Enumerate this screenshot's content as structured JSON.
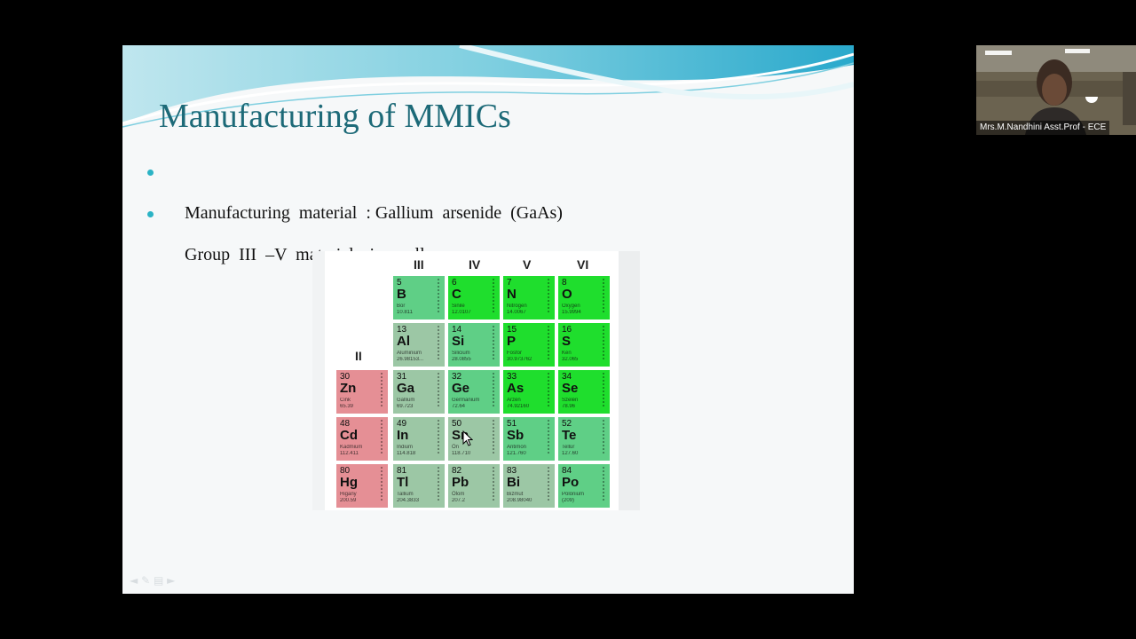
{
  "slide": {
    "title": "Manufacturing of MMICs",
    "bullets": [
      "Manufacturing  material  : Gallium  arsenide  (GaAs)",
      "Group  III  –V  materials  is an alloy."
    ],
    "accent_color": "#1d6a78",
    "bullet_color": "#2bb3c5"
  },
  "periodic_table": {
    "groups": [
      "II",
      "III",
      "IV",
      "V",
      "VI"
    ],
    "rows": [
      [
        null,
        {
          "num": "5",
          "sym": "B",
          "name": "Bor",
          "wt": "10.811",
          "color": "teal"
        },
        {
          "num": "6",
          "sym": "C",
          "name": "Sinile",
          "wt": "12.0107",
          "color": "green"
        },
        {
          "num": "7",
          "sym": "N",
          "name": "Nitrogen",
          "wt": "14.0067",
          "color": "green"
        },
        {
          "num": "8",
          "sym": "O",
          "name": "Oxygen",
          "wt": "15.9994",
          "color": "green"
        }
      ],
      [
        null,
        {
          "num": "13",
          "sym": "Al",
          "name": "Aluminium",
          "wt": "26.98153...",
          "color": "gray"
        },
        {
          "num": "14",
          "sym": "Si",
          "name": "Silicium",
          "wt": "28.0855",
          "color": "teal"
        },
        {
          "num": "15",
          "sym": "P",
          "name": "Fosfor",
          "wt": "30.973762",
          "color": "green"
        },
        {
          "num": "16",
          "sym": "S",
          "name": "Kén",
          "wt": "32.065",
          "color": "green"
        }
      ],
      [
        {
          "num": "30",
          "sym": "Zn",
          "name": "Cink",
          "wt": "65.39",
          "color": "pink"
        },
        {
          "num": "31",
          "sym": "Ga",
          "name": "Gallium",
          "wt": "69.723",
          "color": "gray"
        },
        {
          "num": "32",
          "sym": "Ge",
          "name": "Germanium",
          "wt": "72.64",
          "color": "teal"
        },
        {
          "num": "33",
          "sym": "As",
          "name": "Arzén",
          "wt": "74.92160",
          "color": "green"
        },
        {
          "num": "34",
          "sym": "Se",
          "name": "Szelén",
          "wt": "78.96",
          "color": "green"
        }
      ],
      [
        {
          "num": "48",
          "sym": "Cd",
          "name": "Kadmium",
          "wt": "112.411",
          "color": "pink"
        },
        {
          "num": "49",
          "sym": "In",
          "name": "Indium",
          "wt": "114.818",
          "color": "gray"
        },
        {
          "num": "50",
          "sym": "Sn",
          "name": "Ón",
          "wt": "118.710",
          "color": "gray"
        },
        {
          "num": "51",
          "sym": "Sb",
          "name": "Antimon",
          "wt": "121.760",
          "color": "teal"
        },
        {
          "num": "52",
          "sym": "Te",
          "name": "Tellúr",
          "wt": "127.60",
          "color": "teal"
        }
      ],
      [
        {
          "num": "80",
          "sym": "Hg",
          "name": "Higany",
          "wt": "200.59",
          "color": "pink"
        },
        {
          "num": "81",
          "sym": "Tl",
          "name": "Tallium",
          "wt": "204.3833",
          "color": "gray"
        },
        {
          "num": "82",
          "sym": "Pb",
          "name": "Ólom",
          "wt": "207.2",
          "color": "gray"
        },
        {
          "num": "83",
          "sym": "Bi",
          "name": "Bizmut",
          "wt": "208.98040",
          "color": "gray"
        },
        {
          "num": "84",
          "sym": "Po",
          "name": "Polónium",
          "wt": "(209)",
          "color": "teal"
        }
      ]
    ]
  },
  "webcam": {
    "caption": "Mrs.M.Nandhini Asst.Prof - ECE"
  },
  "nav_icons": [
    "prev-icon",
    "pen-icon",
    "menu-icon",
    "next-icon"
  ]
}
